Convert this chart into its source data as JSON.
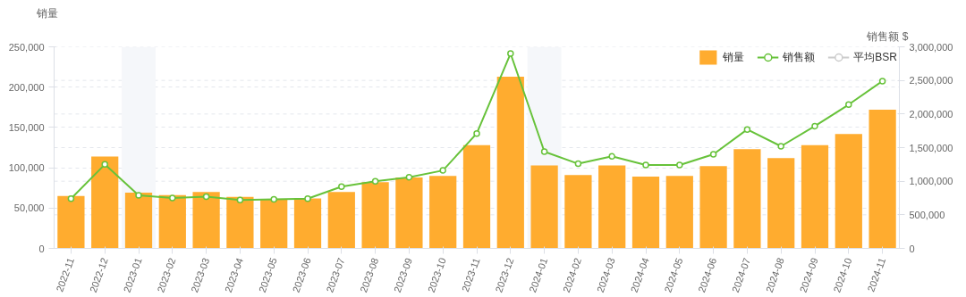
{
  "chart_data": {
    "type": "bar",
    "categories": [
      "2022-11",
      "2022-12",
      "2023-01",
      "2023-02",
      "2023-03",
      "2023-04",
      "2023-05",
      "2023-06",
      "2023-07",
      "2023-08",
      "2023-09",
      "2023-10",
      "2023-11",
      "2023-12",
      "2024-01",
      "2024-02",
      "2024-03",
      "2024-04",
      "2024-05",
      "2024-06",
      "2024-07",
      "2024-08",
      "2024-09",
      "2024-10",
      "2024-11"
    ],
    "ylabel": "销量",
    "y2label": "销售额 $",
    "series": [
      {
        "name": "销量",
        "color": "#ffac2f",
        "values": [
          65000,
          114000,
          69000,
          66000,
          70000,
          64000,
          61000,
          62000,
          70000,
          82000,
          88000,
          90000,
          128000,
          213000,
          103000,
          91000,
          103000,
          89000,
          90000,
          102000,
          123000,
          112000,
          128000,
          142000,
          172000
        ]
      },
      {
        "name": "销售额",
        "type": "line",
        "axis": "y2",
        "color": "#67c23a",
        "values": [
          740000,
          1250000,
          790000,
          750000,
          770000,
          720000,
          730000,
          740000,
          920000,
          1000000,
          1060000,
          1160000,
          1710000,
          2900000,
          1440000,
          1260000,
          1370000,
          1240000,
          1240000,
          1400000,
          1770000,
          1520000,
          1820000,
          2140000,
          2490000
        ]
      },
      {
        "name": "平均BSR",
        "type": "line",
        "color": "#cccccc",
        "values": [
          null,
          null,
          null,
          null,
          null,
          null,
          null,
          null,
          null,
          null,
          null,
          null,
          null,
          null,
          null,
          null,
          null,
          null,
          null,
          null,
          null,
          null,
          null,
          null,
          null
        ]
      }
    ],
    "ylim": [
      0,
      250000
    ],
    "yticks": [
      0,
      {
        "value": 50000,
        "label": "50,000"
      },
      {
        "value": 100000,
        "label": "100,000"
      },
      {
        "value": 150000,
        "label": "150,000"
      },
      {
        "value": 200000,
        "label": "200,000"
      },
      {
        "value": 250000,
        "label": "250,000"
      }
    ],
    "y2lim": [
      0,
      3000000
    ],
    "y2ticks": [
      0,
      {
        "value": 500000,
        "label": "500,000"
      },
      {
        "value": 1000000,
        "label": "1,000,000"
      },
      {
        "value": 1500000,
        "label": "1,500,000"
      },
      {
        "value": 2000000,
        "label": "2,000,000"
      },
      {
        "value": 2500000,
        "label": "2,500,000"
      },
      {
        "value": 3000000,
        "label": "3,000,000"
      }
    ],
    "bands": [
      {
        "axis": "x",
        "from": "2023-01",
        "to": "2023-01",
        "color": "#f5f7fa"
      },
      {
        "axis": "x",
        "from": "2024-01",
        "to": "2024-01",
        "color": "#f5f7fa"
      }
    ],
    "grid": true,
    "legend": "top right",
    "marker": "circle",
    "line_style": "solid"
  }
}
